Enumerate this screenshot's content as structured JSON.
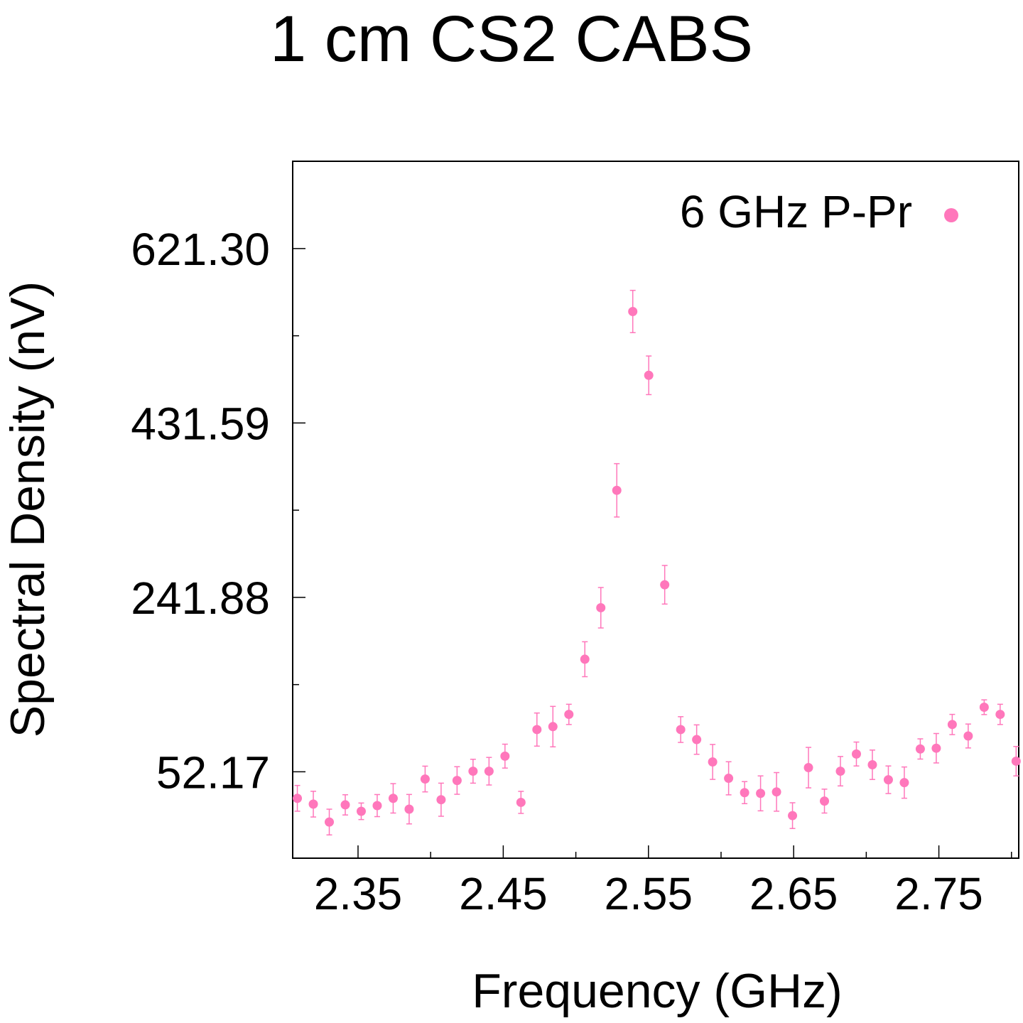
{
  "chart_data": {
    "type": "scatter",
    "title": "1 cm CS2 CABS",
    "xlabel": "Frequency (GHz)",
    "ylabel": "Spectral Density (nV)",
    "xlim": [
      2.305,
      2.805
    ],
    "ylim": [
      -41.8,
      716.2
    ],
    "xticks": [
      2.35,
      2.45,
      2.55,
      2.65,
      2.75
    ],
    "xtick_labels": [
      "2.35",
      "2.45",
      "2.55",
      "2.65",
      "2.75"
    ],
    "xminor": [
      2.4,
      2.5,
      2.6,
      2.7,
      2.8
    ],
    "yticks": [
      52.17,
      241.88,
      431.59,
      621.3
    ],
    "ytick_labels": [
      "52.17",
      "241.88",
      "431.59",
      "621.30"
    ],
    "yminor": [
      147.0,
      336.7,
      526.4
    ],
    "grid": false,
    "legend_position": "top-right",
    "series": [
      {
        "name": "6 GHz P-Pr",
        "color": "#ff77bb",
        "x": [
          2.3082,
          2.3192,
          2.3302,
          2.3412,
          2.3522,
          2.3632,
          2.3742,
          2.3852,
          2.3962,
          2.4072,
          2.4182,
          2.4292,
          2.4402,
          2.4512,
          2.4622,
          2.4732,
          2.4842,
          2.4952,
          2.5062,
          2.5172,
          2.5282,
          2.5392,
          2.5502,
          2.5612,
          2.5722,
          2.5832,
          2.5942,
          2.6052,
          2.6162,
          2.6272,
          2.6382,
          2.6492,
          2.6602,
          2.6712,
          2.6822,
          2.6932,
          2.7042,
          2.7152,
          2.7262,
          2.7372,
          2.7482,
          2.7592,
          2.7702,
          2.7812,
          2.7922,
          2.8032
        ],
        "y": [
          23.3,
          17.0,
          -2.5,
          16.2,
          9.2,
          15.4,
          23.3,
          11.5,
          44.3,
          21.8,
          42.7,
          52.8,
          52.8,
          69.2,
          18.9,
          98.1,
          101.3,
          114.6,
          174.6,
          230.6,
          358.3,
          552.8,
          483.4,
          255.6,
          98.1,
          87.2,
          62.9,
          45.1,
          29.5,
          28.7,
          30.3,
          4.5,
          56.7,
          20.3,
          52.8,
          71.5,
          59.8,
          43.5,
          40.4,
          77.0,
          77.8,
          103.6,
          91.1,
          122.4,
          114.6,
          63.7
        ],
        "err": [
          14.0,
          14.0,
          14.0,
          11.0,
          9.0,
          12.0,
          16.0,
          16.0,
          14.0,
          18.0,
          15.0,
          13.0,
          15.0,
          13.0,
          12.0,
          18.0,
          22.0,
          11.0,
          19.0,
          22.0,
          29.0,
          23.0,
          21.0,
          21.0,
          14.0,
          16.0,
          19.0,
          18.0,
          12.0,
          19.0,
          21.0,
          14.0,
          22.0,
          13.0,
          16.0,
          13.0,
          16.0,
          15.0,
          17.0,
          11.0,
          16.0,
          11.0,
          13.0,
          8.0,
          11.0,
          16.0
        ]
      }
    ]
  }
}
